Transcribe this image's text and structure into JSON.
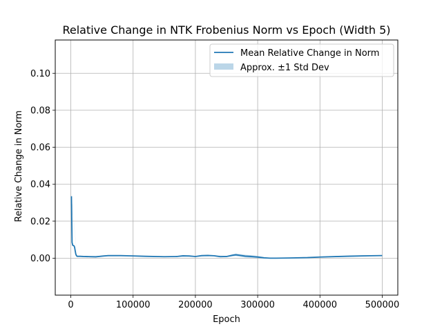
{
  "chart_data": {
    "type": "line",
    "title": "Relative Change in NTK Frobenius Norm vs Epoch (Width 5)",
    "xlabel": "Epoch",
    "ylabel": "Relative Change in Norm",
    "xlim": [
      -25000,
      525000
    ],
    "ylim": [
      -0.02,
      0.118
    ],
    "xticks": [
      0,
      100000,
      200000,
      300000,
      400000,
      500000
    ],
    "xtick_labels": [
      "0",
      "100000",
      "200000",
      "300000",
      "400000",
      "500000"
    ],
    "yticks": [
      0.0,
      0.02,
      0.04,
      0.06,
      0.08,
      0.1
    ],
    "ytick_labels": [
      "0.00",
      "0.02",
      "0.04",
      "0.06",
      "0.08",
      "0.10"
    ],
    "grid": true,
    "legend_position": "upper right",
    "colors": {
      "line": "#1f77b4",
      "band": "#1f77b4"
    },
    "series": [
      {
        "name": "Mean Relative Change in Norm",
        "x": [
          1000,
          2000,
          3000,
          4000,
          5000,
          6000,
          7000,
          8000,
          9000,
          10000,
          12000,
          15000,
          20000,
          30000,
          40000,
          50000,
          60000,
          70000,
          80000,
          100000,
          120000,
          150000,
          170000,
          180000,
          190000,
          200000,
          210000,
          220000,
          230000,
          240000,
          250000,
          260000,
          265000,
          270000,
          280000,
          290000,
          300000,
          310000,
          320000,
          330000,
          350000,
          380000,
          400000,
          430000,
          450000,
          480000,
          500000
        ],
        "y": [
          0.0335,
          0.0085,
          0.007,
          0.0068,
          0.0067,
          0.006,
          0.004,
          0.0022,
          0.0014,
          0.001,
          0.001,
          0.001,
          0.0009,
          0.0008,
          0.0007,
          0.0011,
          0.0014,
          0.0014,
          0.0014,
          0.0012,
          0.001,
          0.0008,
          0.0009,
          0.0013,
          0.0012,
          0.0009,
          0.0014,
          0.0015,
          0.0013,
          0.0008,
          0.0009,
          0.0016,
          0.0018,
          0.0016,
          0.0011,
          0.0009,
          0.0006,
          0.0002,
          0.0,
          0.0,
          0.0001,
          0.0003,
          0.0006,
          0.0009,
          0.0011,
          0.0013,
          0.0014
        ]
      },
      {
        "name": "Approx. ±1 Std Dev",
        "type": "area",
        "x": [
          1000,
          10000,
          50000,
          100000,
          150000,
          200000,
          230000,
          250000,
          260000,
          265000,
          270000,
          280000,
          290000,
          300000,
          310000,
          320000,
          350000,
          400000,
          450000,
          500000
        ],
        "lower": [
          0.033,
          0.0008,
          0.0009,
          0.001,
          0.0006,
          0.0007,
          0.001,
          0.0006,
          0.001,
          0.0012,
          0.0009,
          0.0004,
          0.0002,
          0.0,
          -0.0002,
          -0.0002,
          0.0,
          0.0004,
          0.0008,
          0.0011
        ],
        "upper": [
          0.034,
          0.0012,
          0.0013,
          0.0014,
          0.001,
          0.0011,
          0.0016,
          0.0012,
          0.0022,
          0.0025,
          0.0023,
          0.0018,
          0.0016,
          0.0012,
          0.0006,
          0.0002,
          0.0002,
          0.0008,
          0.0014,
          0.0017
        ]
      }
    ]
  }
}
